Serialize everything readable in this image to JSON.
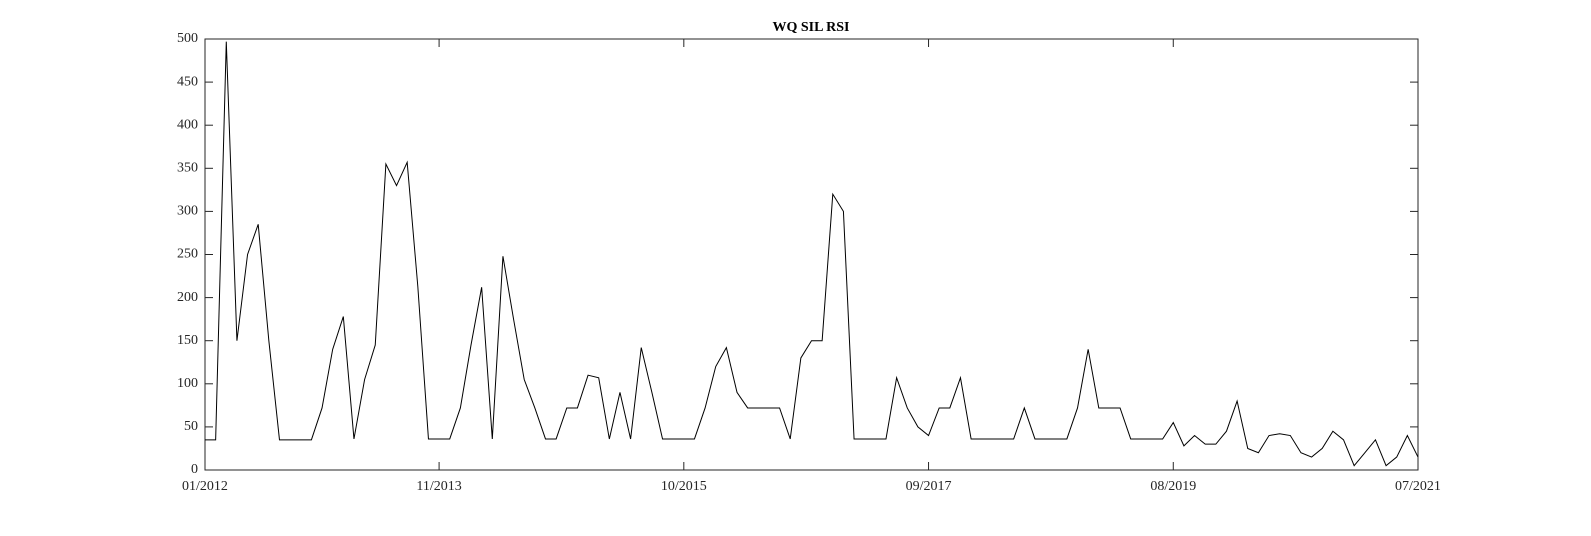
{
  "chart_data": {
    "type": "line",
    "title": "WQ SIL RSI",
    "x": [
      "2012-01",
      "2012-02",
      "2012-03",
      "2012-04",
      "2012-05",
      "2012-06",
      "2012-07",
      "2012-08",
      "2012-09",
      "2012-10",
      "2012-11",
      "2012-12",
      "2013-01",
      "2013-02",
      "2013-03",
      "2013-04",
      "2013-05",
      "2013-06",
      "2013-07",
      "2013-08",
      "2013-09",
      "2013-10",
      "2013-11",
      "2013-12",
      "2014-01",
      "2014-02",
      "2014-03",
      "2014-04",
      "2014-05",
      "2014-06",
      "2014-07",
      "2014-08",
      "2014-09",
      "2014-10",
      "2014-11",
      "2014-12",
      "2015-01",
      "2015-02",
      "2015-03",
      "2015-04",
      "2015-05",
      "2015-06",
      "2015-07",
      "2015-08",
      "2015-09",
      "2015-10",
      "2015-11",
      "2015-12",
      "2016-01",
      "2016-02",
      "2016-03",
      "2016-04",
      "2016-05",
      "2016-06",
      "2016-07",
      "2016-08",
      "2016-09",
      "2016-10",
      "2016-11",
      "2016-12",
      "2017-01",
      "2017-02",
      "2017-03",
      "2017-04",
      "2017-05",
      "2017-06",
      "2017-07",
      "2017-08",
      "2017-09",
      "2017-10",
      "2017-11",
      "2017-12",
      "2018-01",
      "2018-02",
      "2018-03",
      "2018-04",
      "2018-05",
      "2018-06",
      "2018-07",
      "2018-08",
      "2018-09",
      "2018-10",
      "2018-11",
      "2018-12",
      "2019-01",
      "2019-02",
      "2019-03",
      "2019-04",
      "2019-05",
      "2019-06",
      "2019-07",
      "2019-08",
      "2019-09",
      "2019-10",
      "2019-11",
      "2019-12",
      "2020-01",
      "2020-02",
      "2020-03",
      "2020-04",
      "2020-05",
      "2020-06",
      "2020-07",
      "2020-08",
      "2020-09",
      "2020-10",
      "2020-11",
      "2020-12",
      "2021-01",
      "2021-02",
      "2021-03",
      "2021-04",
      "2021-05",
      "2021-06",
      "2021-07"
    ],
    "series": [
      {
        "color": "#000000",
        "values": [
          35,
          35,
          497,
          150,
          250,
          285,
          150,
          35,
          35,
          35,
          35,
          72,
          140,
          178,
          36,
          105,
          145,
          355,
          330,
          357,
          213,
          36,
          36,
          36,
          72,
          145,
          212,
          36,
          248,
          175,
          105,
          72,
          36,
          36,
          72,
          72,
          110,
          107,
          36,
          90,
          36,
          142,
          90,
          36,
          36,
          36,
          36,
          72,
          120,
          142,
          90,
          72,
          72,
          72,
          72,
          36,
          130,
          150,
          150,
          320,
          300,
          36,
          36,
          36,
          36,
          107,
          72,
          50,
          40,
          72,
          72,
          107,
          36,
          36,
          36,
          36,
          36,
          72,
          36,
          36,
          36,
          36,
          72,
          140,
          72,
          72,
          72,
          36,
          36,
          36,
          36,
          55,
          28,
          40,
          30,
          30,
          45,
          80,
          25,
          20,
          40,
          42,
          40,
          20,
          15,
          25,
          45,
          35,
          5,
          20,
          35,
          5,
          15,
          40,
          15
        ]
      }
    ],
    "xlim": [
      "2012-01",
      "2021-07"
    ],
    "xticks": [
      {
        "value": "2012-01",
        "label": "01/2012"
      },
      {
        "value": "2013-11",
        "label": "11/2013"
      },
      {
        "value": "2015-10",
        "label": "10/2015"
      },
      {
        "value": "2017-09",
        "label": "09/2017"
      },
      {
        "value": "2019-08",
        "label": "08/2019"
      },
      {
        "value": "2021-07",
        "label": "07/2021"
      }
    ],
    "ylim": [
      0,
      500
    ],
    "yticks": [
      0,
      50,
      100,
      150,
      200,
      250,
      300,
      350,
      400,
      450,
      500
    ],
    "grid": false
  }
}
